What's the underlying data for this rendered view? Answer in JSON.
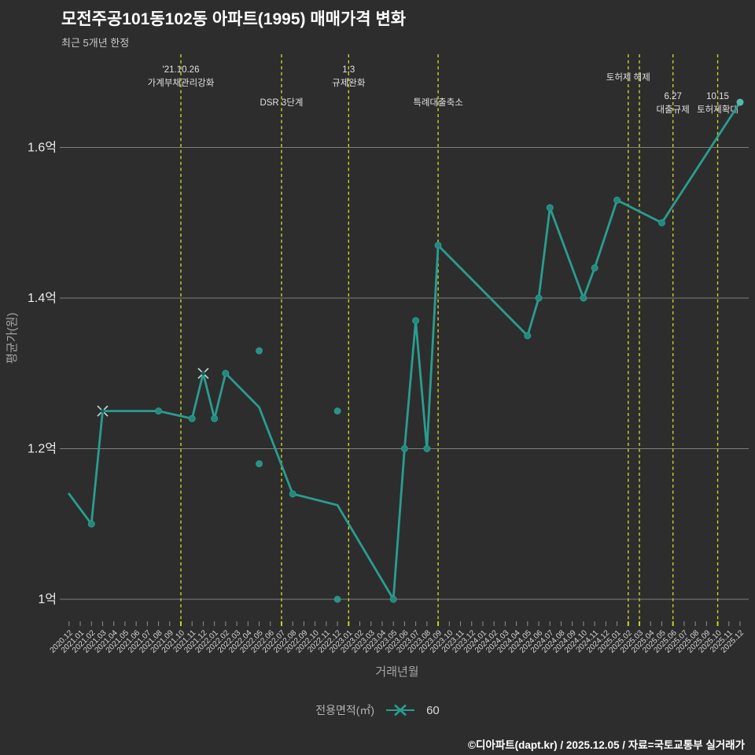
{
  "header": {
    "title": "모전주공101동102동 아파트(1995) 매매가격 변화",
    "subtitle": "최근 5개년 한정"
  },
  "legend": {
    "label": "전용면적(㎡)",
    "value": "60"
  },
  "footer": {
    "credit": "©디아파트(dapt.kr) / 2025.12.05 / 자료=국토교통부 실거래가"
  },
  "chart_data": {
    "type": "line",
    "xlabel": "거래년월",
    "ylabel": "평균가(원)",
    "ylim": [
      0.97,
      1.73
    ],
    "grid": "horizontal-only",
    "legend_position": "bottom-center",
    "categories": [
      "2020.12",
      "2021.01",
      "2021.02",
      "2021.03",
      "2021.04",
      "2021.05",
      "2021.06",
      "2021.07",
      "2021.08",
      "2021.09",
      "2021.10",
      "2021.11",
      "2021.12",
      "2022.01",
      "2022.02",
      "2022.03",
      "2022.04",
      "2022.05",
      "2022.06",
      "2022.07",
      "2022.08",
      "2022.09",
      "2022.10",
      "2022.11",
      "2022.12",
      "2023.01",
      "2023.02",
      "2023.03",
      "2023.04",
      "2023.05",
      "2023.06",
      "2023.07",
      "2023.08",
      "2023.09",
      "2023.10",
      "2023.11",
      "2023.12",
      "2024.01",
      "2024.02",
      "2024.03",
      "2024.04",
      "2024.05",
      "2024.06",
      "2024.07",
      "2024.08",
      "2024.09",
      "2024.10",
      "2024.11",
      "2024.12",
      "2025.01",
      "2025.02",
      "2025.03",
      "2025.04",
      "2025.05",
      "2025.06",
      "2025.07",
      "2025.08",
      "2025.09",
      "2025.10",
      "2025.11",
      "2025.12"
    ],
    "yticks": [
      {
        "value": 1.0,
        "label": "1억"
      },
      {
        "value": 1.2,
        "label": "1.2억"
      },
      {
        "value": 1.4,
        "label": "1.4억"
      },
      {
        "value": 1.6,
        "label": "1.6억"
      }
    ],
    "series": [
      {
        "name": "60",
        "unit": "억원",
        "points": [
          {
            "x": "2020.12",
            "y": 1.14,
            "marker": "none"
          },
          {
            "x": "2021.02",
            "y": 1.1,
            "marker": "dot"
          },
          {
            "x": "2021.03",
            "y": 1.25,
            "marker": "x"
          },
          {
            "x": "2021.08",
            "y": 1.25,
            "marker": "dot"
          },
          {
            "x": "2021.11",
            "y": 1.24,
            "marker": "dot"
          },
          {
            "x": "2021.12",
            "y": 1.3,
            "marker": "x"
          },
          {
            "x": "2022.01",
            "y": 1.24,
            "marker": "dot"
          },
          {
            "x": "2022.02",
            "y": 1.3,
            "marker": "dot"
          },
          {
            "x": "2022.05",
            "y": 1.255,
            "marker": "none"
          },
          {
            "x": "2022.08",
            "y": 1.14,
            "marker": "dot"
          },
          {
            "x": "2022.12",
            "y": 1.125,
            "marker": "none"
          },
          {
            "x": "2023.05",
            "y": 1.0,
            "marker": "dot"
          },
          {
            "x": "2023.06",
            "y": 1.2,
            "marker": "dot"
          },
          {
            "x": "2023.07",
            "y": 1.37,
            "marker": "dot"
          },
          {
            "x": "2023.08",
            "y": 1.2,
            "marker": "dot"
          },
          {
            "x": "2023.09",
            "y": 1.47,
            "marker": "dot"
          },
          {
            "x": "2024.05",
            "y": 1.35,
            "marker": "dot"
          },
          {
            "x": "2024.06",
            "y": 1.4,
            "marker": "dot"
          },
          {
            "x": "2024.07",
            "y": 1.52,
            "marker": "dot"
          },
          {
            "x": "2024.10",
            "y": 1.4,
            "marker": "dot"
          },
          {
            "x": "2024.11",
            "y": 1.44,
            "marker": "dot"
          },
          {
            "x": "2025.01",
            "y": 1.53,
            "marker": "dot"
          },
          {
            "x": "2025.05",
            "y": 1.5,
            "marker": "dot"
          },
          {
            "x": "2025.12",
            "y": 1.66,
            "marker": "dot-light"
          }
        ]
      }
    ],
    "scatter_points": [
      {
        "x": "2022.05",
        "y": 1.33
      },
      {
        "x": "2022.05",
        "y": 1.18
      },
      {
        "x": "2022.12",
        "y": 1.25
      },
      {
        "x": "2022.12",
        "y": 1.0
      }
    ],
    "events": [
      {
        "month": "2021.10",
        "label_lines": [
          "'21.10.26",
          "가계부채관리강화"
        ],
        "label_ys": [
          92,
          109
        ]
      },
      {
        "month": "2022.07",
        "label_lines": [
          "DSR 3단계"
        ],
        "label_ys": [
          134
        ]
      },
      {
        "month": "2023.01",
        "label_lines": [
          "1.3",
          "규제완화"
        ],
        "label_ys": [
          92,
          109
        ]
      },
      {
        "month": "2023.09",
        "label_lines": [
          "특례대출축소"
        ],
        "label_ys": [
          134
        ]
      },
      {
        "month": "2025.02",
        "label_lines": [
          "토허제 해제"
        ],
        "label_ys": [
          102
        ]
      },
      {
        "month": "2025.03",
        "label_lines": [],
        "label_ys": []
      },
      {
        "month": "2025.06",
        "label_lines": [
          "6.27",
          "대출규제"
        ],
        "label_ys": [
          126,
          143
        ]
      },
      {
        "month": "2025.10",
        "label_lines": [
          "10.15",
          "토허제확대"
        ],
        "label_ys": [
          126,
          143
        ]
      }
    ],
    "colors": {
      "background": "#2d2d2d",
      "line": "#2a9d8f",
      "marker": "#23897c",
      "marker_light": "#56b8ab",
      "x_marker": "#b7d9d3",
      "event_line": "#c9d02c",
      "grid": "#9a9a9a",
      "tick": "#8f8f8f",
      "text_main": "#ffffff",
      "text_dim": "#a6a6a6",
      "tick_label": "#d6d6d6",
      "event_text": "#e0e0e0"
    }
  }
}
